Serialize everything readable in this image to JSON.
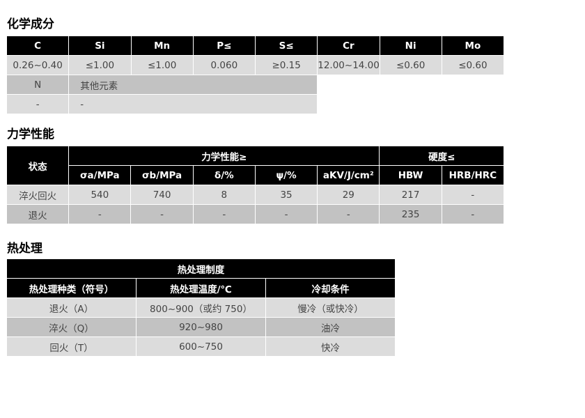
{
  "chem": {
    "title": "化学成分",
    "headers": [
      "C",
      "Si",
      "Mn",
      "P≤",
      "S≤",
      "Cr",
      "Ni",
      "Mo"
    ],
    "values": [
      "0.26~0.40",
      "≤1.00",
      "≤1.00",
      "0.060",
      "≥0.15",
      "12.00~14.00",
      "≤0.60",
      "≤0.60"
    ],
    "extra_headers": [
      "N",
      "其他元素"
    ],
    "extra_values": [
      "-",
      "-"
    ]
  },
  "mech": {
    "title": "力学性能",
    "state_label": "状态",
    "group1": "力学性能≥",
    "group2": "硬度≤",
    "headers": [
      "σa/MPa",
      "σb/MPa",
      "δ/%",
      "ψ/%",
      "aKV/J/cm²",
      "HBW",
      "HRB/HRC"
    ],
    "rows": [
      {
        "state": "淬火回火",
        "values": [
          "540",
          "740",
          "8",
          "35",
          "29",
          "217",
          "-"
        ]
      },
      {
        "state": "退火",
        "values": [
          "-",
          "-",
          "-",
          "-",
          "-",
          "235",
          "-"
        ]
      }
    ]
  },
  "heat": {
    "title": "热处理",
    "caption": "热处理制度",
    "headers": [
      "热处理种类（符号）",
      "热处理温度/℃",
      "冷却条件"
    ],
    "rows": [
      [
        "退火（A）",
        "800~900（或约 750）",
        "慢冷（或快冷）"
      ],
      [
        "淬火（Q）",
        "920~980",
        "油冷"
      ],
      [
        "回火（T）",
        "600~750",
        "快冷"
      ]
    ]
  }
}
